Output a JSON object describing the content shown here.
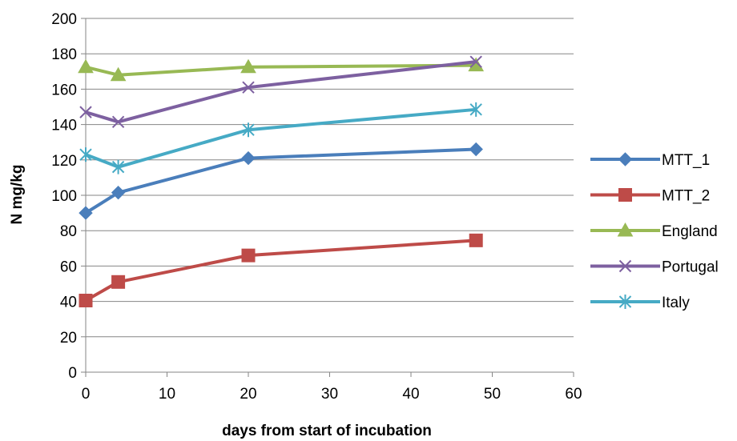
{
  "chart_data": {
    "type": "line",
    "title": "",
    "xlabel": "days from start of incubation",
    "ylabel": "N mg/kg",
    "xlim": [
      0,
      60
    ],
    "ylim": [
      0,
      200
    ],
    "x_ticks": [
      "0",
      "10",
      "20",
      "30",
      "40",
      "50",
      "60"
    ],
    "y_ticks": [
      "0",
      "20",
      "40",
      "60",
      "80",
      "100",
      "120",
      "140",
      "160",
      "180",
      "200"
    ],
    "grid": "horizontal",
    "legend_position": "right",
    "series": [
      {
        "name": "MTT_1",
        "color": "#4a7ebb",
        "marker": "diamond",
        "points": [
          [
            0,
            90
          ],
          [
            4,
            101.5
          ],
          [
            20,
            121
          ],
          [
            48,
            126
          ]
        ]
      },
      {
        "name": "MTT_2",
        "color": "#be4b48",
        "marker": "square",
        "points": [
          [
            0,
            40.5
          ],
          [
            4,
            51
          ],
          [
            20,
            66
          ],
          [
            48,
            74.5
          ]
        ]
      },
      {
        "name": "England",
        "color": "#98b954",
        "marker": "triangle",
        "points": [
          [
            0,
            172.5
          ],
          [
            4,
            168
          ],
          [
            20,
            172.5
          ],
          [
            48,
            173.5
          ]
        ]
      },
      {
        "name": "Portugal",
        "color": "#7d60a0",
        "marker": "x",
        "points": [
          [
            0,
            147
          ],
          [
            4,
            141.5
          ],
          [
            20,
            161
          ],
          [
            48,
            175.5
          ]
        ]
      },
      {
        "name": "Italy",
        "color": "#46aac5",
        "marker": "star",
        "points": [
          [
            0,
            123
          ],
          [
            4,
            116
          ],
          [
            20,
            137
          ],
          [
            48,
            148.5
          ]
        ]
      }
    ]
  }
}
